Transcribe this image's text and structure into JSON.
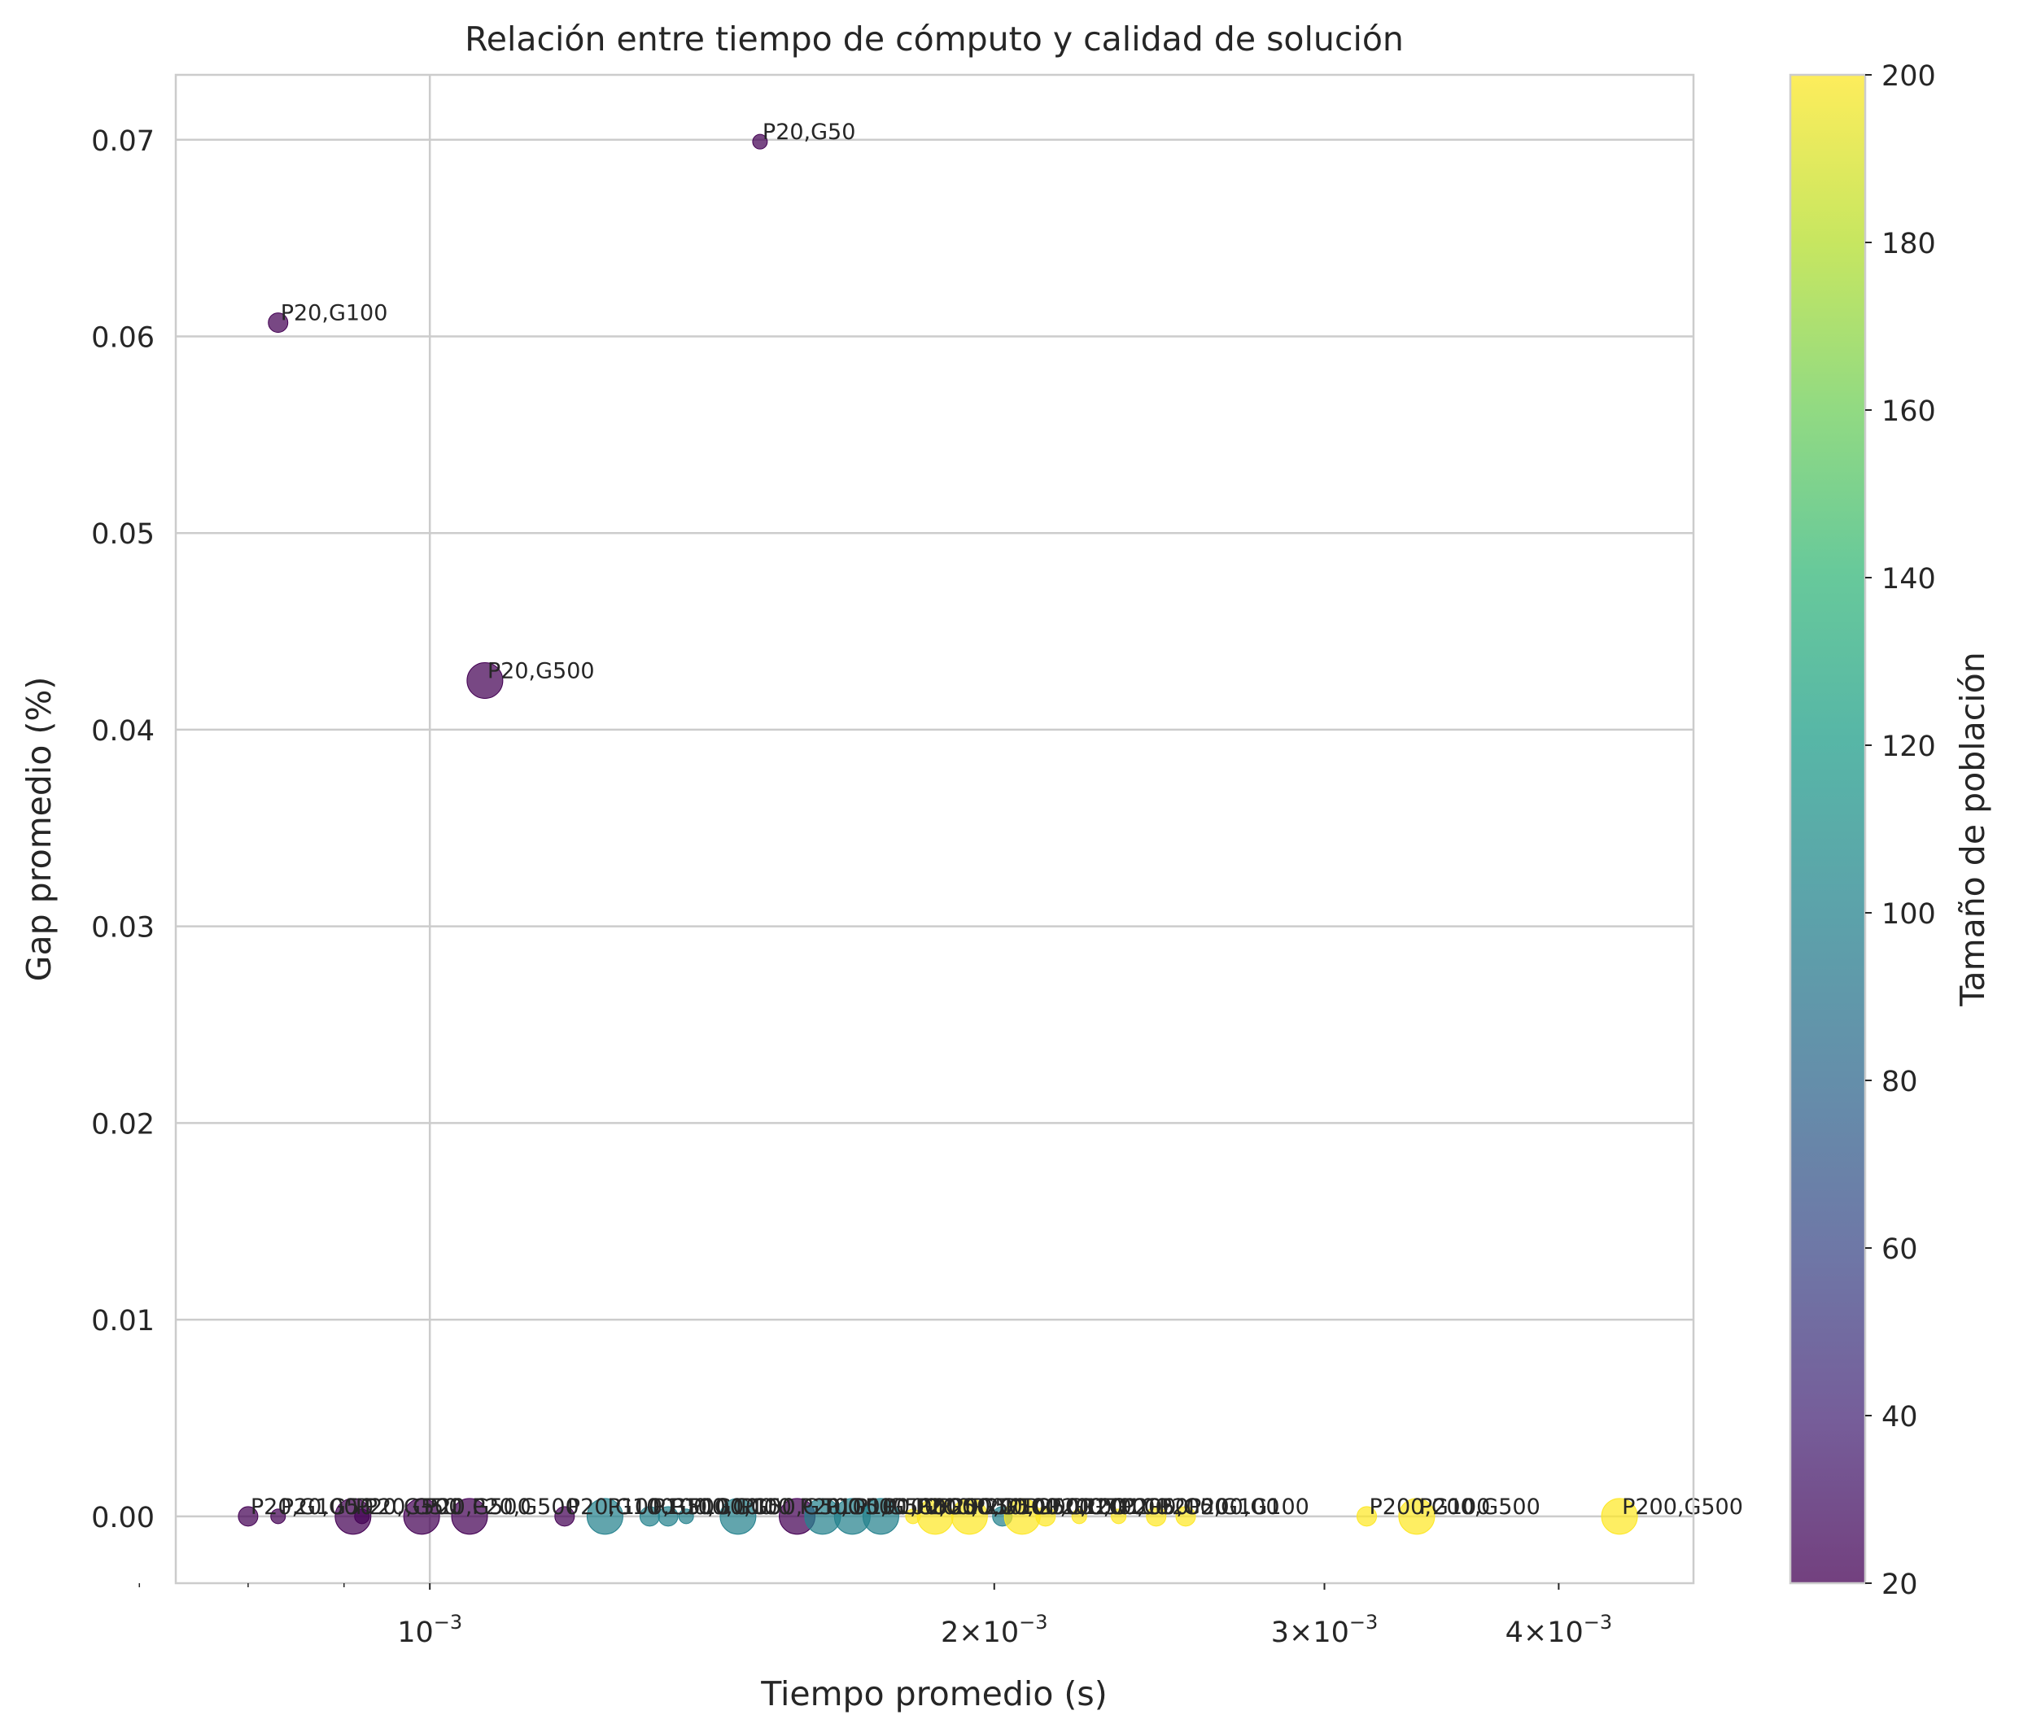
{
  "chart_data": {
    "type": "scatter",
    "title": "Relación entre tiempo de cómputo y calidad de solución",
    "xlabel": "Tiempo promedio (s)",
    "ylabel": "Gap promedio (%)",
    "xscale": "log",
    "xlim": [
      0.000732,
      0.00472
    ],
    "ylim": [
      -0.0034,
      0.0733
    ],
    "grid": true,
    "x_ticks": [
      {
        "value": 0.001,
        "mantissa": "",
        "exponent": "−3"
      },
      {
        "value": 0.002,
        "mantissa": "2",
        "exponent": "−3"
      },
      {
        "value": 0.003,
        "mantissa": "3",
        "exponent": "−3"
      },
      {
        "value": 0.004,
        "mantissa": "4",
        "exponent": "−3"
      }
    ],
    "x_minor_ticks": [
      0.0007,
      0.0008,
      0.0009
    ],
    "y_ticks": [
      {
        "value": 0.0,
        "label": "0.00"
      },
      {
        "value": 0.01,
        "label": "0.01"
      },
      {
        "value": 0.02,
        "label": "0.02"
      },
      {
        "value": 0.03,
        "label": "0.03"
      },
      {
        "value": 0.04,
        "label": "0.04"
      },
      {
        "value": 0.05,
        "label": "0.05"
      },
      {
        "value": 0.06,
        "label": "0.06"
      },
      {
        "value": 0.07,
        "label": "0.07"
      }
    ],
    "colorbar": {
      "label": "Tamaño de población",
      "min": 20,
      "max": 200,
      "colormap": "viridis",
      "ticks": [
        {
          "value": 20,
          "label": "20"
        },
        {
          "value": 40,
          "label": "40"
        },
        {
          "value": 60,
          "label": "60"
        },
        {
          "value": 80,
          "label": "80"
        },
        {
          "value": 100,
          "label": "100"
        },
        {
          "value": 120,
          "label": "120"
        },
        {
          "value": 140,
          "label": "140"
        },
        {
          "value": 160,
          "label": "160"
        },
        {
          "value": 180,
          "label": "180"
        },
        {
          "value": 200,
          "label": "200"
        }
      ]
    },
    "points": [
      {
        "x": 0.0015,
        "y": 0.0699,
        "pop": 20,
        "gen": 50,
        "label": "P20,G50"
      },
      {
        "x": 0.00083,
        "y": 0.0607,
        "pop": 20,
        "gen": 100,
        "label": "P20,G100"
      },
      {
        "x": 0.00107,
        "y": 0.0425,
        "pop": 20,
        "gen": 500,
        "label": "P20,G500"
      },
      {
        "x": 0.0008,
        "y": 0.0,
        "pop": 20,
        "gen": 100,
        "label": "P20,G100"
      },
      {
        "x": 0.00083,
        "y": 0.0,
        "pop": 20,
        "gen": 50,
        "label": "P20,G50"
      },
      {
        "x": 0.00092,
        "y": 0.0,
        "pop": 20,
        "gen": 50,
        "label": "P20,G50"
      },
      {
        "x": 0.00091,
        "y": 0.0,
        "pop": 20,
        "gen": 500,
        "label": "P20,G500"
      },
      {
        "x": 0.00099,
        "y": 0.0,
        "pop": 20,
        "gen": 500,
        "label": "P20,G500"
      },
      {
        "x": 0.00105,
        "y": 0.0,
        "pop": 20,
        "gen": 500,
        "label": "P20,G500"
      },
      {
        "x": 0.00118,
        "y": 0.0,
        "pop": 20,
        "gen": 100,
        "label": "P20,G100"
      },
      {
        "x": 0.00124,
        "y": 0.0,
        "pop": 100,
        "gen": 500,
        "label": "P100,G500"
      },
      {
        "x": 0.00131,
        "y": 0.0,
        "pop": 100,
        "gen": 100,
        "label": "P100,G100"
      },
      {
        "x": 0.00134,
        "y": 0.0,
        "pop": 100,
        "gen": 100,
        "label": "P100,G100"
      },
      {
        "x": 0.00137,
        "y": 0.0,
        "pop": 100,
        "gen": 50,
        "label": "P100,G50"
      },
      {
        "x": 0.00146,
        "y": 0.0,
        "pop": 100,
        "gen": 500,
        "label": "P100,G500"
      },
      {
        "x": 0.00157,
        "y": 0.0,
        "pop": 20,
        "gen": 500,
        "label": "P20,G500"
      },
      {
        "x": 0.00162,
        "y": 0.0,
        "pop": 100,
        "gen": 500,
        "label": "P100,G500"
      },
      {
        "x": 0.00168,
        "y": 0.0,
        "pop": 100,
        "gen": 500,
        "label": "P100,G500"
      },
      {
        "x": 0.00174,
        "y": 0.0,
        "pop": 100,
        "gen": 500,
        "label": "P100,G500"
      },
      {
        "x": 0.00181,
        "y": 0.0,
        "pop": 200,
        "gen": 50,
        "label": "P200,G50"
      },
      {
        "x": 0.00186,
        "y": 0.0,
        "pop": 200,
        "gen": 500,
        "label": "P200,G500"
      },
      {
        "x": 0.00194,
        "y": 0.0,
        "pop": 200,
        "gen": 500,
        "label": "P200,G500"
      },
      {
        "x": 0.00202,
        "y": 0.0,
        "pop": 100,
        "gen": 100,
        "label": "P100,G100"
      },
      {
        "x": 0.00207,
        "y": 0.0,
        "pop": 200,
        "gen": 500,
        "label": "P200,G500"
      },
      {
        "x": 0.00213,
        "y": 0.0,
        "pop": 200,
        "gen": 100,
        "label": "P200,G100"
      },
      {
        "x": 0.00222,
        "y": 0.0,
        "pop": 200,
        "gen": 50,
        "label": "P200,G50"
      },
      {
        "x": 0.00233,
        "y": 0.0,
        "pop": 200,
        "gen": 50,
        "label": "P200,G50"
      },
      {
        "x": 0.00244,
        "y": 0.0,
        "pop": 200,
        "gen": 100,
        "label": "P200,G100"
      },
      {
        "x": 0.00253,
        "y": 0.0,
        "pop": 200,
        "gen": 100,
        "label": "P200,G100"
      },
      {
        "x": 0.00316,
        "y": 0.0,
        "pop": 200,
        "gen": 100,
        "label": "P200,G100"
      },
      {
        "x": 0.00336,
        "y": 0.0,
        "pop": 200,
        "gen": 500,
        "label": "P200,G500"
      },
      {
        "x": 0.00431,
        "y": 0.0,
        "pop": 200,
        "gen": 500,
        "label": "P200,G500"
      }
    ]
  }
}
